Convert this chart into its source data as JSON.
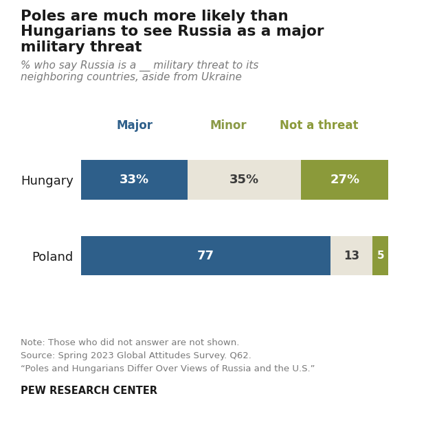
{
  "title_line1": "Poles are much more likely than",
  "title_line2": "Hungarians to see Russia as a major",
  "title_line3": "military threat",
  "subtitle_line1": "% who say Russia is a __ military threat to its",
  "subtitle_line2": "neighboring countries, aside from Ukraine",
  "countries": [
    "Hungary",
    "Poland"
  ],
  "major": [
    33,
    77
  ],
  "minor": [
    35,
    13
  ],
  "not_a_threat": [
    27,
    5
  ],
  "color_major": "#2E5F8A",
  "color_minor": "#E8E4D8",
  "color_not": "#8B9A3A",
  "legend_labels": [
    "Major",
    "Minor",
    "Not a threat"
  ],
  "legend_text_colors": [
    "#2E5F8A",
    "#8B9A46",
    "#8B9A3A"
  ],
  "note_line1": "Note: Those who did not answer are not shown.",
  "note_line2": "Source: Spring 2023 Global Attitudes Survey. Q62.",
  "note_line3": "“Poles and Hungarians Differ Over Views of Russia and the U.S.”",
  "footer": "PEW RESEARCH CENTER",
  "hungary_labels": [
    "33%",
    "35%",
    "27%"
  ],
  "poland_labels": [
    "77",
    "13",
    "5"
  ],
  "background_color": "#FFFFFF",
  "title_color": "#1a1a1a",
  "subtitle_color": "#7A7A7A",
  "note_color": "#7A7A7A",
  "label_white": "#FFFFFF",
  "label_dark": "#3A3A3A"
}
